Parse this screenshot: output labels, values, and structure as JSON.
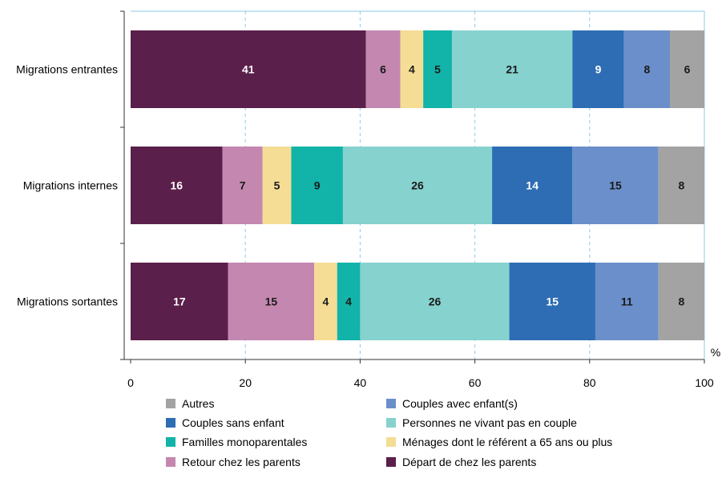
{
  "chart_data": {
    "type": "bar",
    "orientation": "horizontal",
    "stacked": true,
    "categories": [
      "Migrations entrantes",
      "Migrations internes",
      "Migrations sortantes"
    ],
    "series": [
      {
        "name": "Départ de chez les parents",
        "color": "#5b1f4b",
        "values": [
          41,
          16,
          17
        ]
      },
      {
        "name": "Retour chez les parents",
        "color": "#c487b0",
        "values": [
          6,
          7,
          15
        ]
      },
      {
        "name": "Ménages dont le référent a 65 ans ou plus",
        "color": "#f5dd95",
        "values": [
          4,
          5,
          4
        ]
      },
      {
        "name": "Familles monoparentales",
        "color": "#12b3a8",
        "values": [
          5,
          9,
          4
        ]
      },
      {
        "name": "Personnes ne vivant pas en couple",
        "color": "#86d2cf",
        "values": [
          21,
          26,
          26
        ]
      },
      {
        "name": "Couples sans enfant",
        "color": "#2e6db4",
        "values": [
          9,
          14,
          15
        ]
      },
      {
        "name": "Couples avec enfant(s)",
        "color": "#6b8fca",
        "values": [
          8,
          15,
          11
        ]
      },
      {
        "name": "Autres",
        "color": "#a3a3a3",
        "values": [
          6,
          8,
          8
        ]
      }
    ],
    "xlim": [
      0,
      100
    ],
    "xticks": [
      "0",
      "20",
      "40",
      "60",
      "80",
      "100"
    ],
    "xunit": "%",
    "grid": "vertical dashed",
    "legend": {
      "position": "bottom",
      "order": [
        "Autres",
        "Couples avec enfant(s)",
        "Couples sans enfant",
        "Personnes ne vivant pas en couple",
        "Familles monoparentales",
        "Ménages dont le référent a 65 ans ou plus",
        "Retour chez les parents",
        "Départ de chez les parents"
      ]
    },
    "label_colors": {
      "dark_bg": "#ffffff",
      "light_bg": "#1a1a1a"
    }
  }
}
